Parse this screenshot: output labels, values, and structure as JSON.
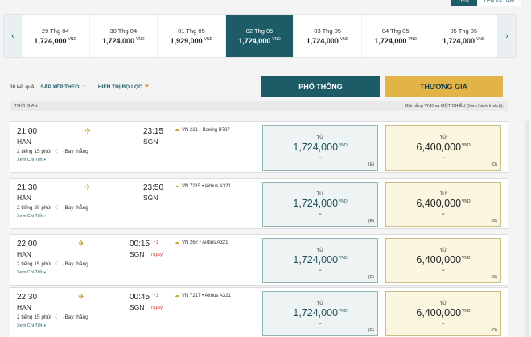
{
  "top_toggle": {
    "tab1": "Tiền",
    "tab2": "Tiền và Dặm"
  },
  "date_strip": {
    "dates": [
      {
        "date": "29 Thg 04",
        "price": "1,724,000",
        "currency": "VND"
      },
      {
        "date": "30 Thg 04",
        "price": "1,724,000",
        "currency": "VND"
      },
      {
        "date": "01 Thg 05",
        "price": "1,929,000",
        "currency": "VND"
      },
      {
        "date": "02 Thg 05",
        "price": "1,724,000",
        "currency": "VND"
      },
      {
        "date": "03 Thg 05",
        "price": "1,724,000",
        "currency": "VND"
      },
      {
        "date": "04 Thg 05",
        "price": "1,724,000",
        "currency": "VND"
      },
      {
        "date": "05 Thg 05",
        "price": "1,724,000",
        "currency": "VND"
      }
    ]
  },
  "toolbar": {
    "result_count": "30 kết quả",
    "sort_label": "SẮP XẾP THEO:",
    "filter_label": "HIỂN THỊ BỘ LỌC",
    "economy_label": "PHỔ THÔNG",
    "business_label": "THƯƠNG GIA"
  },
  "list_header": {
    "left": "THỜI GIAN",
    "right": "Giá bằng VND và MỘT CHIỀU (theo hành khách)."
  },
  "flights": [
    {
      "dep_time": "21:00",
      "dep_code": "HAN",
      "arr_time": "23:15",
      "arr_code": "SGN",
      "plus": "",
      "day": "",
      "duration": "2 tiếng 15 phút",
      "nonstop": "-Bay thẳng",
      "details": "Xem Chi Tiết",
      "flight_info": "VN 221 • Boeing B787",
      "eco_from": "TỪ",
      "eco_price": "1,724,000",
      "eco_cur": "VND",
      "eco_class": "(E)",
      "biz_from": "TỪ",
      "biz_price": "6,400,000",
      "biz_cur": "VND",
      "biz_class": "(D)"
    },
    {
      "dep_time": "21:30",
      "dep_code": "HAN",
      "arr_time": "23:50",
      "arr_code": "SGN",
      "plus": "",
      "day": "",
      "duration": "2 tiếng 20 phút",
      "nonstop": "-Bay thẳng",
      "details": "Xem Chi Tiết",
      "flight_info": "VN 7215 • Airbus A321",
      "eco_from": "TỪ",
      "eco_price": "1,724,000",
      "eco_cur": "VND",
      "eco_class": "(E)",
      "biz_from": "TỪ",
      "biz_price": "6,400,000",
      "biz_cur": "VND",
      "biz_class": "(D)"
    },
    {
      "dep_time": "22:00",
      "dep_code": "HAN",
      "arr_time": "00:15",
      "arr_code": "SGN",
      "plus": "+1",
      "day": "ngày",
      "duration": "2 tiếng 15 phút",
      "nonstop": "-Bay thẳng",
      "details": "Xem Chi Tiết",
      "flight_info": "VN 267 • Airbus A321",
      "eco_from": "TỪ",
      "eco_price": "1,724,000",
      "eco_cur": "VND",
      "eco_class": "(E)",
      "biz_from": "TỪ",
      "biz_price": "6,400,000",
      "biz_cur": "VND",
      "biz_class": "(D)"
    },
    {
      "dep_time": "22:30",
      "dep_code": "HAN",
      "arr_time": "00:45",
      "arr_code": "SGN",
      "plus": "+1",
      "day": "ngày",
      "duration": "2 tiếng 15 phút",
      "nonstop": "-Bay thẳng",
      "details": "Xem Chi Tiết",
      "flight_info": "VN 7217 • Airbus A321",
      "eco_from": "TỪ",
      "eco_price": "1,724,000",
      "eco_cur": "VND",
      "eco_class": "(E)",
      "biz_from": "TỪ",
      "biz_price": "6,400,000",
      "biz_cur": "VND",
      "biz_class": "(D)"
    }
  ]
}
